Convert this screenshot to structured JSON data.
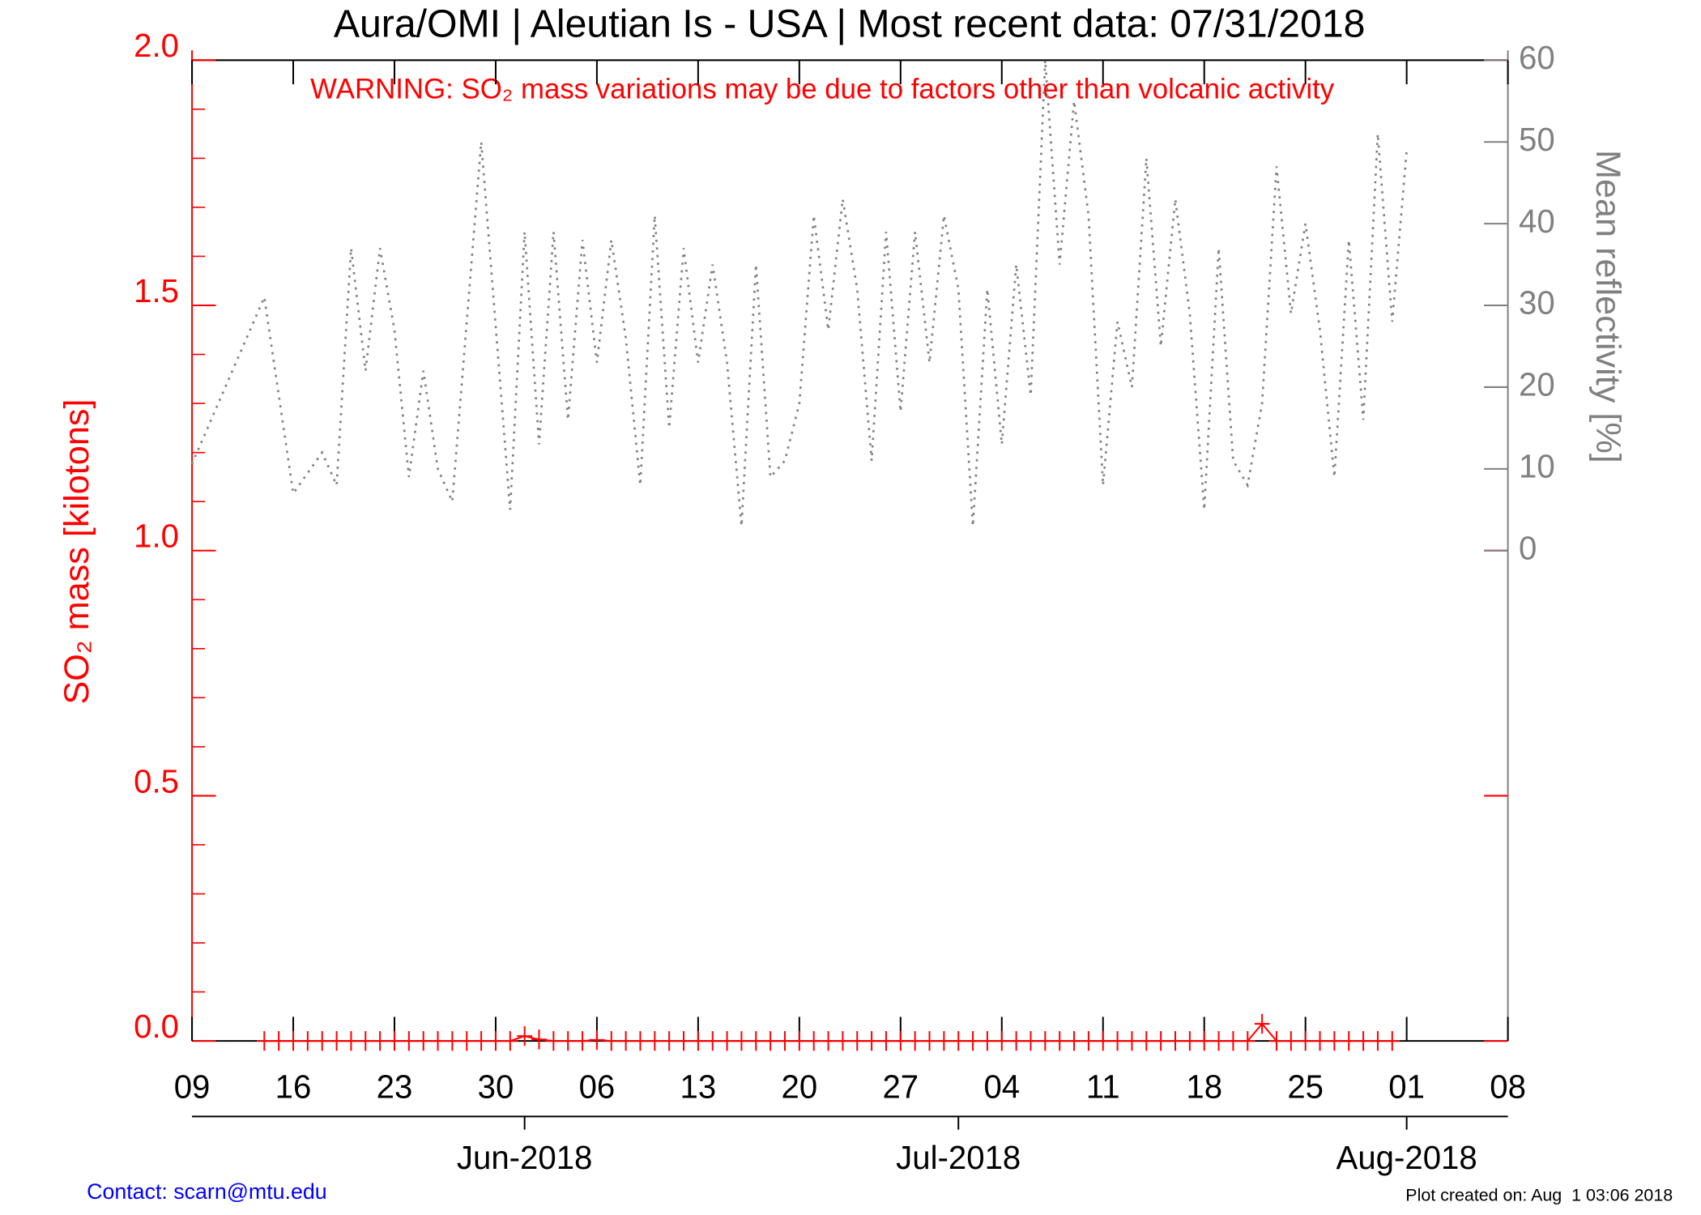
{
  "chart_data": {
    "type": "line",
    "title": "Aura/OMI | Aleutian Is - USA | Most recent data: 07/31/2018",
    "annotation": "WARNING: SO₂ mass variations may be due to factors other than volcanic activity",
    "y_label": "SO₂ mass [kilotons]",
    "y2_label": "Mean reflectivity [%]",
    "contact": "Contact: scarn@mtu.edu",
    "created": "Plot created on: Aug  1 03:06 2018",
    "xlim": [
      "2018-05-09",
      "2018-08-08"
    ],
    "xticks": [
      {
        "value": "2018-05-09",
        "label": "09"
      },
      {
        "value": "2018-05-16",
        "label": "16"
      },
      {
        "value": "2018-05-23",
        "label": "23"
      },
      {
        "value": "2018-05-30",
        "label": "30"
      },
      {
        "value": "2018-06-06",
        "label": "06"
      },
      {
        "value": "2018-06-13",
        "label": "13"
      },
      {
        "value": "2018-06-20",
        "label": "20"
      },
      {
        "value": "2018-06-27",
        "label": "27"
      },
      {
        "value": "2018-07-04",
        "label": "04"
      },
      {
        "value": "2018-07-11",
        "label": "11"
      },
      {
        "value": "2018-07-18",
        "label": "18"
      },
      {
        "value": "2018-07-25",
        "label": "25"
      },
      {
        "value": "2018-08-01",
        "label": "01"
      },
      {
        "value": "2018-08-08",
        "label": "08"
      }
    ],
    "month_ticks": [
      {
        "value": "2018-06-01",
        "label": "Jun-2018"
      },
      {
        "value": "2018-07-01",
        "label": "Jul-2018"
      },
      {
        "value": "2018-08-01",
        "label": "Aug-2018"
      }
    ],
    "ylim": [
      0,
      2.0
    ],
    "yticks": [
      {
        "value": 0,
        "label": "0.0"
      },
      {
        "value": 0.5,
        "label": "0.5"
      },
      {
        "value": 1.0,
        "label": "1.0"
      },
      {
        "value": 1.5,
        "label": "1.5"
      },
      {
        "value": 2.0,
        "label": "2.0"
      }
    ],
    "y2lim": [
      -60,
      60
    ],
    "y2ticks": [
      0,
      10,
      20,
      30,
      40,
      50,
      60
    ],
    "series": [
      {
        "name": "SO₂ mass",
        "color": "#ff0000",
        "axis": "y",
        "style": "solid-plus",
        "x": [
          "2018-05-14",
          "2018-05-15",
          "2018-05-16",
          "2018-05-17",
          "2018-05-18",
          "2018-05-19",
          "2018-05-20",
          "2018-05-21",
          "2018-05-22",
          "2018-05-23",
          "2018-05-24",
          "2018-05-25",
          "2018-05-26",
          "2018-05-27",
          "2018-05-28",
          "2018-05-29",
          "2018-05-30",
          "2018-05-31",
          "2018-06-01",
          "2018-06-02",
          "2018-06-03",
          "2018-06-04",
          "2018-06-05",
          "2018-06-06",
          "2018-06-07",
          "2018-06-08",
          "2018-06-09",
          "2018-06-10",
          "2018-06-11",
          "2018-06-12",
          "2018-06-13",
          "2018-06-14",
          "2018-06-15",
          "2018-06-16",
          "2018-06-17",
          "2018-06-18",
          "2018-06-19",
          "2018-06-20",
          "2018-06-21",
          "2018-06-22",
          "2018-06-23",
          "2018-06-24",
          "2018-06-25",
          "2018-06-26",
          "2018-06-27",
          "2018-06-28",
          "2018-06-29",
          "2018-06-30",
          "2018-07-01",
          "2018-07-02",
          "2018-07-03",
          "2018-07-04",
          "2018-07-05",
          "2018-07-06",
          "2018-07-07",
          "2018-07-08",
          "2018-07-09",
          "2018-07-10",
          "2018-07-11",
          "2018-07-12",
          "2018-07-13",
          "2018-07-14",
          "2018-07-15",
          "2018-07-16",
          "2018-07-17",
          "2018-07-18",
          "2018-07-19",
          "2018-07-20",
          "2018-07-21",
          "2018-07-22",
          "2018-07-23",
          "2018-07-24",
          "2018-07-25",
          "2018-07-26",
          "2018-07-27",
          "2018-07-28",
          "2018-07-29",
          "2018-07-30",
          "2018-07-31"
        ],
        "values": [
          0,
          0,
          0,
          0,
          0,
          0,
          0,
          0,
          0,
          0,
          0,
          0,
          0,
          0,
          0,
          0,
          0,
          0,
          0.01,
          0.003,
          0,
          0,
          0,
          0.002,
          0,
          0,
          0,
          0,
          0,
          0,
          0,
          0,
          0,
          0,
          0,
          0,
          0,
          0,
          0,
          0,
          0,
          0,
          0,
          0,
          0,
          0,
          0,
          0,
          0,
          0,
          0,
          0,
          0,
          0,
          0,
          0,
          0,
          0,
          0,
          0,
          0,
          0,
          0,
          0,
          0,
          0,
          0,
          0,
          0,
          0.035,
          0,
          0,
          0,
          0,
          0,
          0,
          0,
          0,
          0
        ]
      },
      {
        "name": "Mean reflectivity",
        "color": "#808080",
        "axis": "y2",
        "style": "dotted",
        "x": [
          "2018-05-09",
          "2018-05-14",
          "2018-05-16",
          "2018-05-18",
          "2018-05-19",
          "2018-05-20",
          "2018-05-21",
          "2018-05-22",
          "2018-05-23",
          "2018-05-24",
          "2018-05-25",
          "2018-05-26",
          "2018-05-27",
          "2018-05-29",
          "2018-05-31",
          "2018-06-01",
          "2018-06-02",
          "2018-06-03",
          "2018-06-04",
          "2018-06-05",
          "2018-06-06",
          "2018-06-07",
          "2018-06-08",
          "2018-06-09",
          "2018-06-10",
          "2018-06-11",
          "2018-06-12",
          "2018-06-13",
          "2018-06-14",
          "2018-06-15",
          "2018-06-16",
          "2018-06-17",
          "2018-06-18",
          "2018-06-19",
          "2018-06-20",
          "2018-06-21",
          "2018-06-22",
          "2018-06-23",
          "2018-06-24",
          "2018-06-25",
          "2018-06-26",
          "2018-06-27",
          "2018-06-28",
          "2018-06-29",
          "2018-06-30",
          "2018-07-01",
          "2018-07-02",
          "2018-07-03",
          "2018-07-04",
          "2018-07-05",
          "2018-07-06",
          "2018-07-07",
          "2018-07-08",
          "2018-07-09",
          "2018-07-10",
          "2018-07-11",
          "2018-07-12",
          "2018-07-13",
          "2018-07-14",
          "2018-07-15",
          "2018-07-16",
          "2018-07-17",
          "2018-07-18",
          "2018-07-19",
          "2018-07-20",
          "2018-07-21",
          "2018-07-22",
          "2018-07-23",
          "2018-07-24",
          "2018-07-25",
          "2018-07-26",
          "2018-07-27",
          "2018-07-28",
          "2018-07-29",
          "2018-07-30",
          "2018-07-31",
          "2018-08-01"
        ],
        "values": [
          10.6,
          31,
          7,
          12,
          8,
          37,
          22,
          37,
          27,
          9,
          22,
          10,
          6,
          50,
          5,
          39,
          13,
          39,
          16,
          38,
          23,
          38,
          26,
          8,
          41,
          15,
          37,
          23,
          35,
          23,
          3,
          35,
          9,
          11,
          18,
          41,
          27,
          43,
          32,
          11,
          39,
          17,
          39,
          23,
          41,
          32,
          3,
          32,
          13,
          35,
          19,
          60,
          35,
          55,
          41,
          8,
          28,
          20,
          48,
          25,
          43,
          29,
          5,
          37,
          11,
          8,
          18,
          47,
          29,
          40,
          27,
          9,
          38,
          16,
          51,
          28,
          49
        ]
      }
    ]
  }
}
